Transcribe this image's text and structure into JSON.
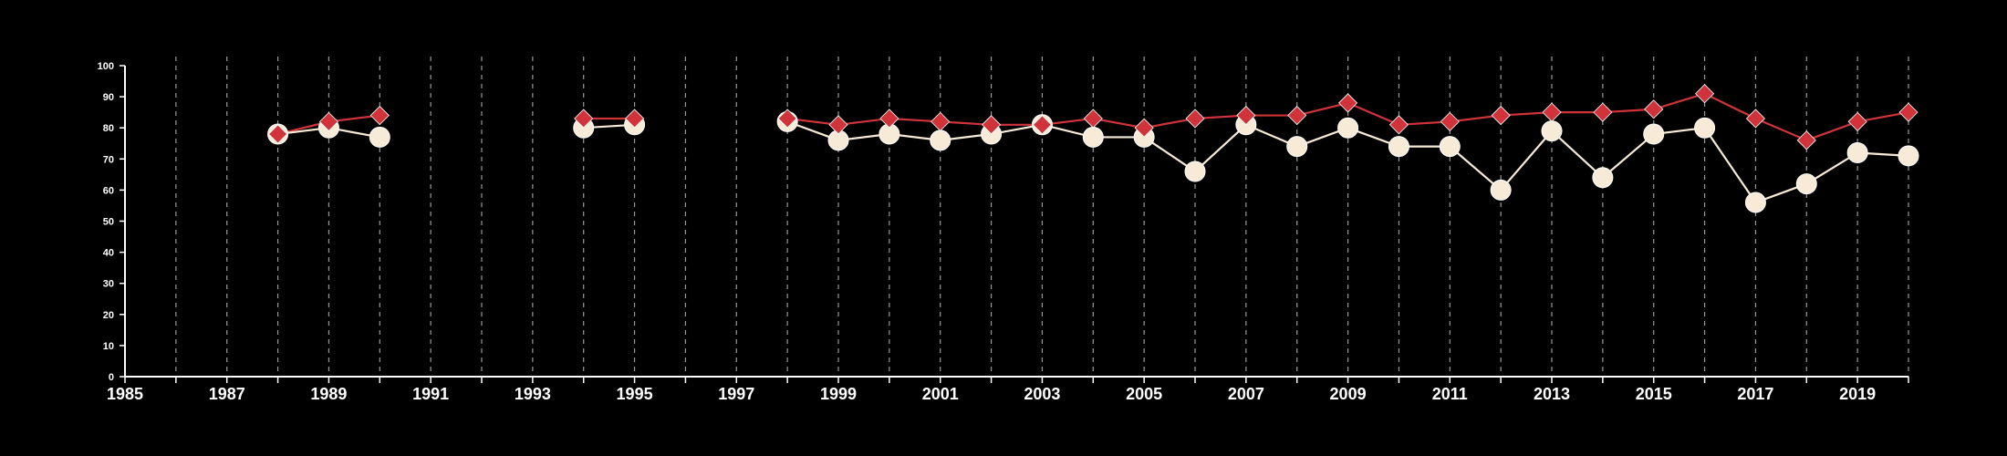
{
  "colors": {
    "background": "#000000",
    "axis": "#ffffff",
    "grid": "#9a9a9a",
    "series_red": "#d0343a",
    "series_cream": "#f7ead7"
  },
  "chart_data": {
    "type": "line",
    "title": "",
    "xlabel": "",
    "ylabel": "",
    "xlim": [
      1985,
      2020
    ],
    "ylim": [
      0,
      100
    ],
    "grid": "vertical dashed lines at every year",
    "legend": "none",
    "x_ticks": [
      1985,
      1987,
      1989,
      1991,
      1993,
      1995,
      1997,
      1999,
      2001,
      2003,
      2005,
      2007,
      2009,
      2011,
      2013,
      2015,
      2017,
      2019
    ],
    "y_ticks": [
      0,
      10,
      20,
      30,
      40,
      50,
      60,
      70,
      80,
      90,
      100
    ],
    "x": [
      1988,
      1989,
      1990,
      1994,
      1995,
      1998,
      1999,
      2000,
      2001,
      2002,
      2003,
      2004,
      2005,
      2006,
      2007,
      2008,
      2009,
      2010,
      2011,
      2012,
      2013,
      2014,
      2015,
      2016,
      2017,
      2018,
      2019,
      2020
    ],
    "series": [
      {
        "marker": "diamond",
        "color": "#d0343a",
        "values": [
          78,
          82,
          84,
          83,
          83,
          83,
          81,
          83,
          82,
          81,
          81,
          83,
          80,
          83,
          84,
          84,
          88,
          81,
          82,
          84,
          85,
          85,
          86,
          91,
          83,
          76,
          82,
          85
        ]
      },
      {
        "marker": "circle",
        "color": "#f7ead7",
        "values": [
          78,
          80,
          77,
          80,
          81,
          82,
          76,
          78,
          76,
          78,
          81,
          77,
          77,
          66,
          81,
          74,
          80,
          74,
          74,
          60,
          79,
          64,
          78,
          80,
          56,
          62,
          72,
          71
        ]
      }
    ]
  }
}
